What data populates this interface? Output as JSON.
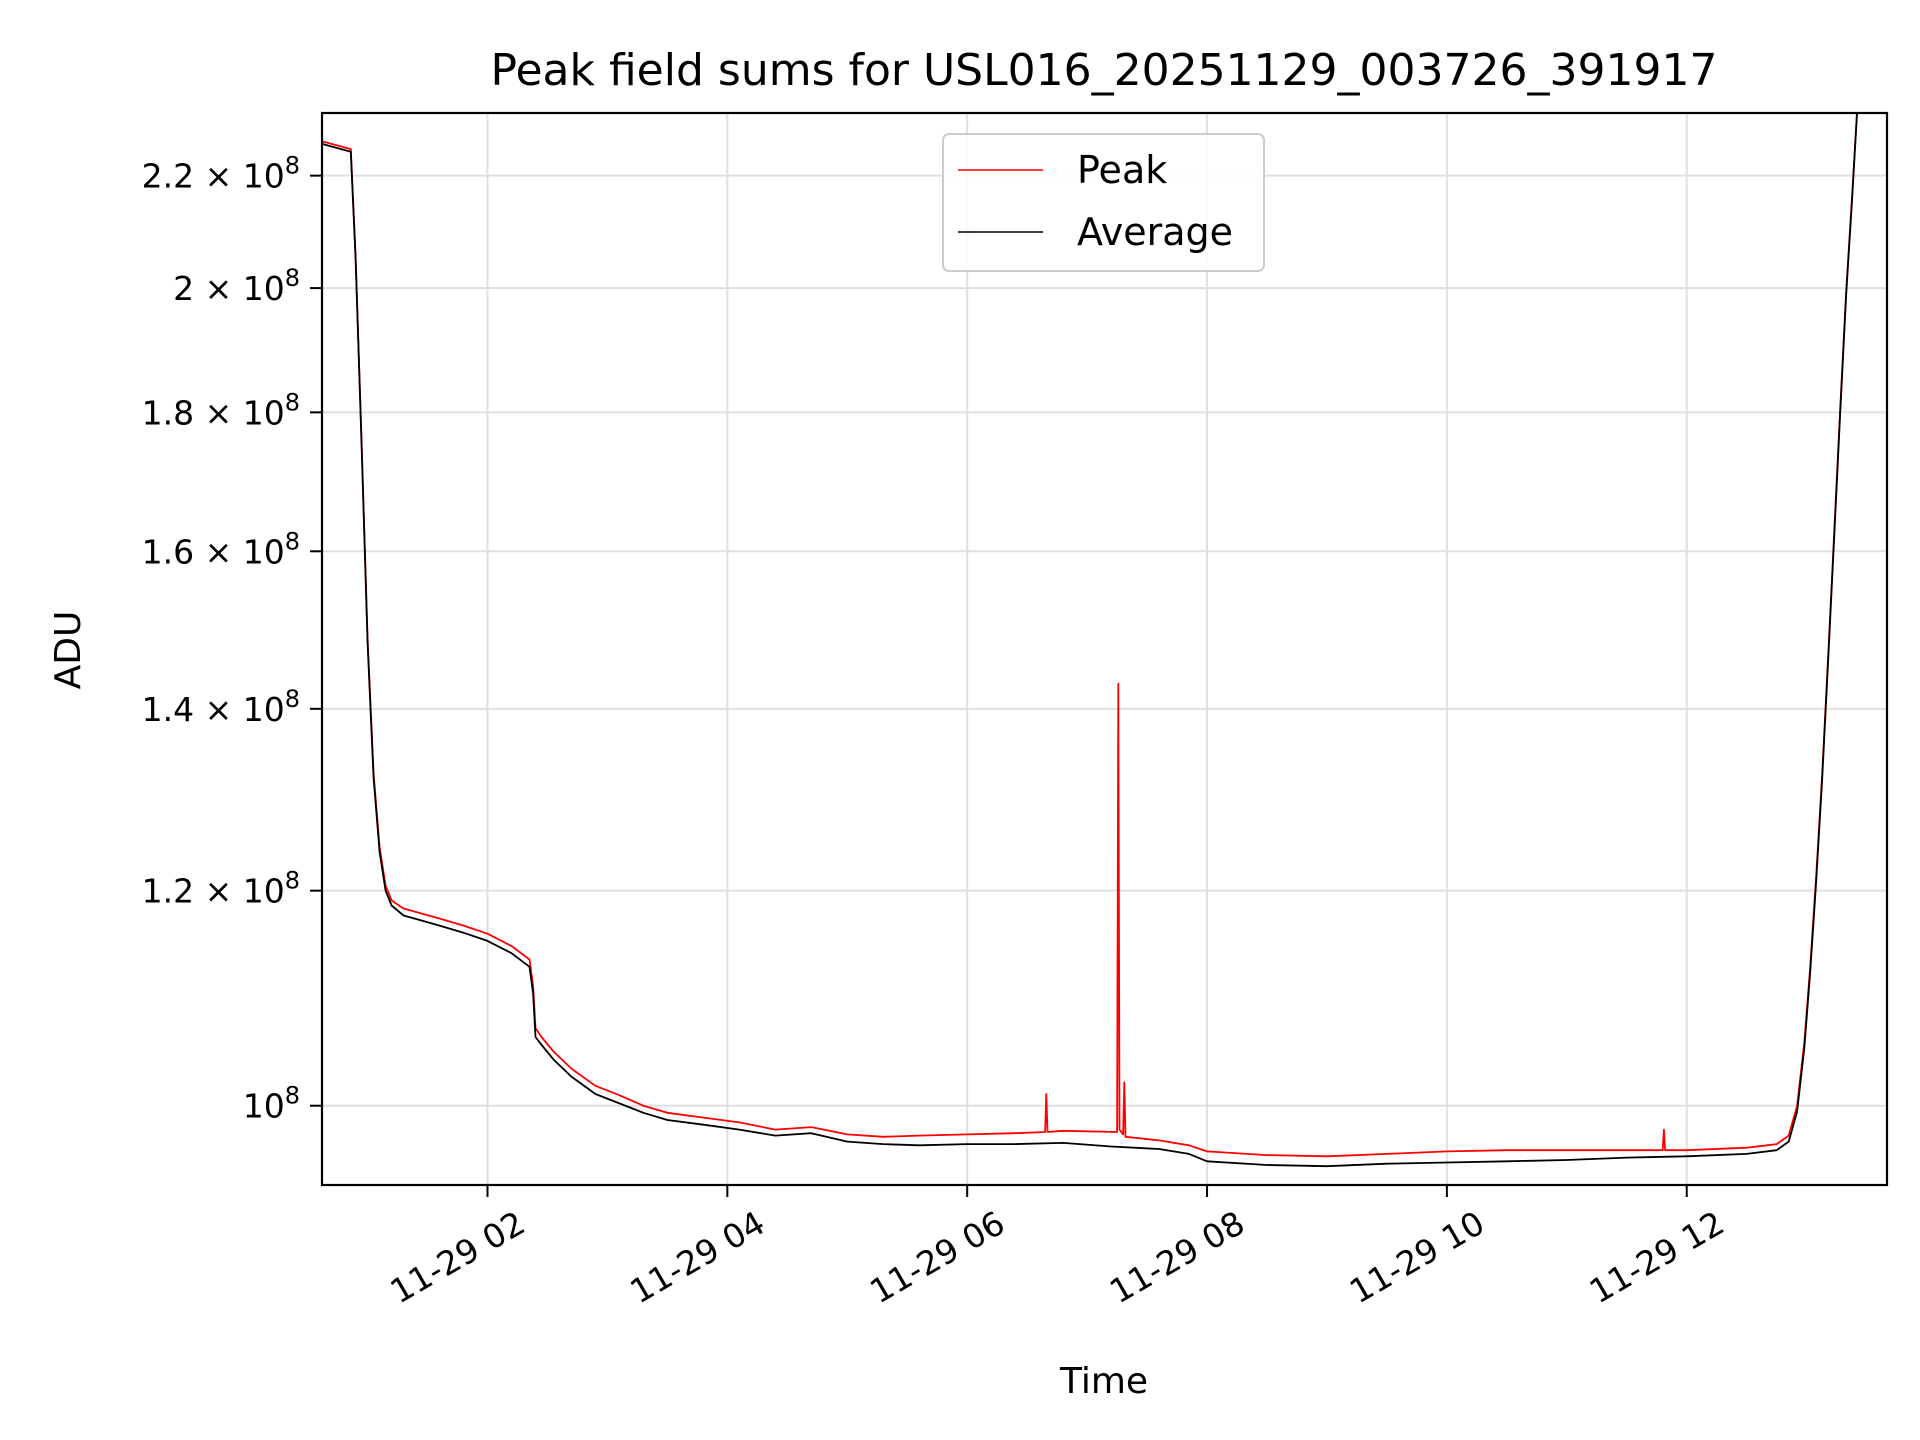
{
  "chart_data": {
    "type": "line",
    "title": "Peak field sums for USL016_20251129_003726_391917",
    "xlabel": "Time",
    "ylabel": "ADU",
    "yscale": "log",
    "grid": true,
    "legend_position": "top-center",
    "xlim": [
      0.62,
      13.67
    ],
    "ylim": [
      93500000.0,
      232000000.0
    ],
    "xticks": [
      2,
      4,
      6,
      8,
      10,
      12
    ],
    "xtick_labels": [
      "11-29 02",
      "11-29 04",
      "11-29 06",
      "11-29 08",
      "11-29 10",
      "11-29 12"
    ],
    "yticks": [
      100000000.0,
      120000000.0,
      140000000.0,
      160000000.0,
      180000000.0,
      200000000.0,
      220000000.0
    ],
    "ytick_mantissas": [
      "",
      "1.2",
      "1.4",
      "1.6",
      "1.8",
      "2",
      "2.2"
    ],
    "ytick_base": "10",
    "ytick_exponent": "8",
    "ytick_times": "×",
    "series": [
      {
        "name": "Average",
        "color": "#000000",
        "x": [
          0.62,
          0.86,
          0.9,
          0.95,
          1.0,
          1.05,
          1.1,
          1.15,
          1.2,
          1.3,
          1.45,
          1.6,
          1.8,
          2.0,
          2.2,
          2.35,
          2.38,
          2.4,
          2.45,
          2.55,
          2.7,
          2.9,
          3.1,
          3.3,
          3.5,
          3.8,
          4.1,
          4.4,
          4.7,
          5.0,
          5.3,
          5.6,
          6.0,
          6.4,
          6.8,
          7.2,
          7.6,
          7.85,
          8.0,
          8.5,
          9.0,
          9.5,
          10.0,
          10.5,
          11.0,
          11.5,
          12.0,
          12.5,
          12.75,
          12.85,
          12.92,
          12.98,
          13.03,
          13.08,
          13.13,
          13.18,
          13.23,
          13.28,
          13.33,
          13.38,
          13.42,
          13.67
        ],
        "values": [
          226000000.0,
          224500000.0,
          205000000.0,
          175000000.0,
          148000000.0,
          132000000.0,
          124000000.0,
          120000000.0,
          118500000.0,
          117500000.0,
          117000000.0,
          116500000.0,
          115800000.0,
          115000000.0,
          113800000.0,
          112500000.0,
          110000000.0,
          106000000.0,
          105300000.0,
          104000000.0,
          102500000.0,
          101000000.0,
          100200000.0,
          99400000.0,
          98800000.0,
          98400000.0,
          98000000.0,
          97500000.0,
          97700000.0,
          97000000.0,
          96800000.0,
          96700000.0,
          96800000.0,
          96800000.0,
          96900000.0,
          96600000.0,
          96400000.0,
          96000000.0,
          95400000.0,
          95100000.0,
          95000000.0,
          95200000.0,
          95300000.0,
          95400000.0,
          95500000.0,
          95700000.0,
          95800000.0,
          96000000.0,
          96300000.0,
          97000000.0,
          99500000.0,
          105000000.0,
          112000000.0,
          121000000.0,
          132000000.0,
          146000000.0,
          162000000.0,
          180000000.0,
          199000000.0,
          216000000.0,
          232000000.0,
          232000000.0
        ]
      },
      {
        "name": "Peak",
        "color": "#ff0000",
        "x": [
          0.62,
          0.86,
          0.9,
          0.95,
          1.0,
          1.05,
          1.1,
          1.15,
          1.2,
          1.3,
          1.45,
          1.6,
          1.8,
          2.0,
          2.2,
          2.35,
          2.38,
          2.4,
          2.45,
          2.55,
          2.7,
          2.9,
          3.1,
          3.3,
          3.5,
          3.8,
          4.1,
          4.4,
          4.7,
          5.0,
          5.3,
          5.6,
          6.0,
          6.4,
          6.65,
          6.66,
          6.67,
          6.8,
          7.25,
          7.26,
          7.27,
          7.3,
          7.31,
          7.32,
          7.6,
          7.85,
          8.0,
          8.5,
          9.0,
          9.5,
          10.0,
          10.5,
          11.0,
          11.5,
          11.8,
          11.81,
          11.82,
          12.0,
          12.5,
          12.75,
          12.85,
          12.92,
          12.98,
          13.03,
          13.08,
          13.13,
          13.18,
          13.23,
          13.28,
          13.33,
          13.38,
          13.42,
          13.67
        ],
        "values": [
          226500000.0,
          225000000.0,
          205500000.0,
          175500000.0,
          148500000.0,
          132500000.0,
          124500000.0,
          120500000.0,
          119000000.0,
          118200000.0,
          117700000.0,
          117200000.0,
          116500000.0,
          115700000.0,
          114500000.0,
          113200000.0,
          110700000.0,
          106800000.0,
          106000000.0,
          104700000.0,
          103200000.0,
          101700000.0,
          100900000.0,
          100000000.0,
          99400000.0,
          99000000.0,
          98600000.0,
          98000000.0,
          98200000.0,
          97600000.0,
          97400000.0,
          97500000.0,
          97600000.0,
          97700000.0,
          97800000.0,
          101000000.0,
          97800000.0,
          97900000.0,
          97800000.0,
          143000000.0,
          98000000.0,
          97600000.0,
          102000000.0,
          97400000.0,
          97100000.0,
          96700000.0,
          96200000.0,
          95900000.0,
          95800000.0,
          96000000.0,
          96200000.0,
          96300000.0,
          96300000.0,
          96300000.0,
          96300000.0,
          98000000.0,
          96300000.0,
          96300000.0,
          96500000.0,
          96800000.0,
          97500000.0,
          100000000.0,
          105500000.0,
          112500000.0,
          121500000.0,
          132500000.0,
          146500000.0,
          162500000.0,
          180500000.0,
          199500000.0,
          216500000.0,
          232000000.0,
          232000000.0
        ]
      }
    ],
    "legend": [
      {
        "label": "Peak",
        "color": "#ff0000"
      },
      {
        "label": "Average",
        "color": "#000000"
      }
    ]
  }
}
